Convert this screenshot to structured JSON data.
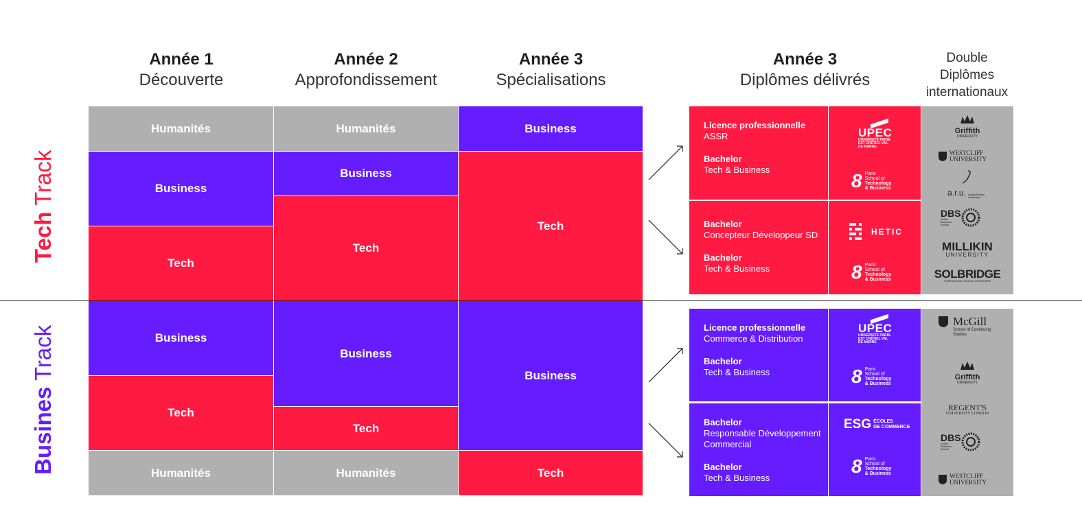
{
  "headers": {
    "y1": {
      "title": "Année 1",
      "subtitle": "Découverte"
    },
    "y2": {
      "title": "Année 2",
      "subtitle": "Approfondissement"
    },
    "y3": {
      "title": "Année 3",
      "subtitle": "Spécialisations"
    },
    "diplomas": {
      "title": "Année 3",
      "subtitle": "Diplômes délivrés"
    },
    "double": {
      "line1": "Double",
      "line2": "Diplômes",
      "line3": "internationaux"
    }
  },
  "tracks": {
    "tech": {
      "bold": "Tech",
      "light": " Track",
      "color": "#ff1a41"
    },
    "business": {
      "bold": "Busines",
      "light": " Track",
      "color": "#651cff"
    }
  },
  "cells": {
    "humanites": "Humanités",
    "business": "Business",
    "tech": "Tech"
  },
  "diplomas": {
    "d1": [
      {
        "type": "Licence professionnelle",
        "name": "ASSR"
      },
      {
        "type": "Bachelor",
        "name": "Tech & Business"
      }
    ],
    "d2": [
      {
        "type": "Bachelor",
        "name": "Concepteur Développeur SD"
      },
      {
        "type": "Bachelor",
        "name": "Tech & Business"
      }
    ],
    "d3": [
      {
        "type": "Licence professionnelle",
        "name": "Commerce & Distribution"
      },
      {
        "type": "Bachelor",
        "name": "Tech & Business"
      }
    ],
    "d4": [
      {
        "type": "Bachelor",
        "name": "Responsable Développement Commercial"
      },
      {
        "type": "Bachelor",
        "name": "Tech & Business"
      }
    ]
  },
  "logos": {
    "upec": {
      "main": "UPEC",
      "sub": "UNIVERSITÉ PARIS-EST CRÉTEIL VAL DE MARNE"
    },
    "pstb": {
      "num": "8",
      "l1": "Paris",
      "l2": "School of",
      "l3": "Technology",
      "l4": "& Business"
    },
    "hetic": "HETIC",
    "esg": {
      "main": "ESG",
      "sub1": "ÉCOLES",
      "sub2": "DE COMMERCE"
    }
  },
  "universities": {
    "griffith": {
      "main": "Griffith",
      "sub": "UNIVERSITY"
    },
    "westcliff": "WESTCLIFF UNIVERSITY",
    "aru": {
      "main": "a.r.u.",
      "sub": "Anglia Ruskin University"
    },
    "dbs": {
      "main": "DBS",
      "sub": "Dublin Business School"
    },
    "millikin": {
      "main": "MILLIKIN",
      "sub": "UNIVERSITY"
    },
    "solbridge": {
      "main": "SOLBRIDGE",
      "sub": "INTERNATIONAL SCHOOL OF BUSINESS"
    },
    "mcgill": {
      "main": "McGill",
      "sub": "School of Continuing Studies"
    },
    "regents": {
      "main": "REGENT'S",
      "sub": "UNIVERSITY LONDON"
    }
  },
  "colors": {
    "red": "#ff1a41",
    "purple": "#651cff",
    "grey": "#b0b0b0"
  }
}
